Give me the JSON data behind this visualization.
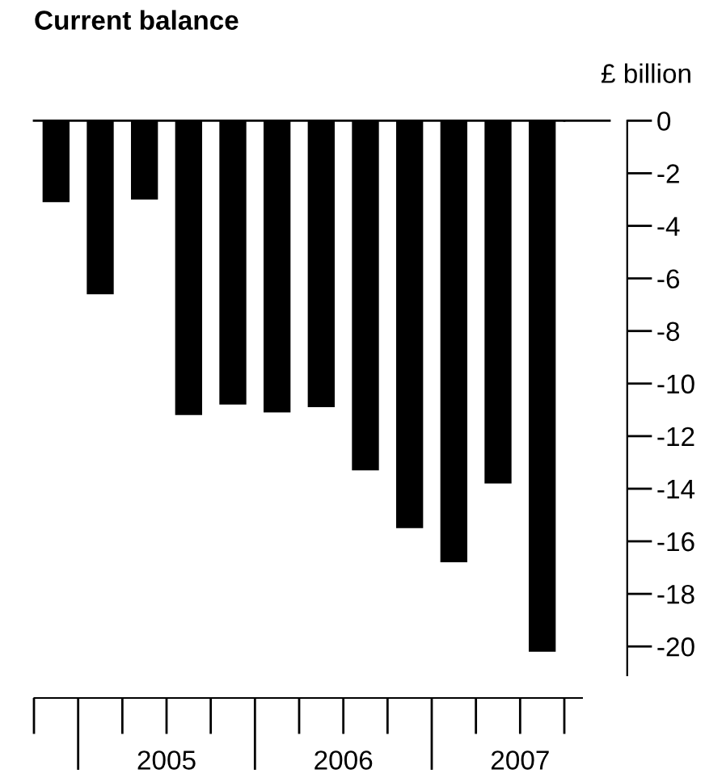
{
  "chart_data": {
    "type": "bar",
    "title": "Current balance",
    "ylabel": "£ billion",
    "categories": [
      null,
      null,
      null,
      null,
      null,
      null,
      null,
      null,
      null,
      null,
      null,
      null
    ],
    "values": [
      -3.1,
      -6.6,
      -3.0,
      -11.2,
      -10.8,
      -11.1,
      -10.9,
      -13.3,
      -15.5,
      -16.8,
      -13.8,
      -20.2
    ],
    "color": "#000000",
    "ylim": [
      -21.1,
      0
    ],
    "yticks": [
      0,
      -2,
      -4,
      -6,
      -8,
      -10,
      -12,
      -14,
      -16,
      -18,
      -20
    ],
    "annotations": [
      "2005",
      "2006",
      "2007"
    ],
    "grid": false,
    "legend": false
  }
}
